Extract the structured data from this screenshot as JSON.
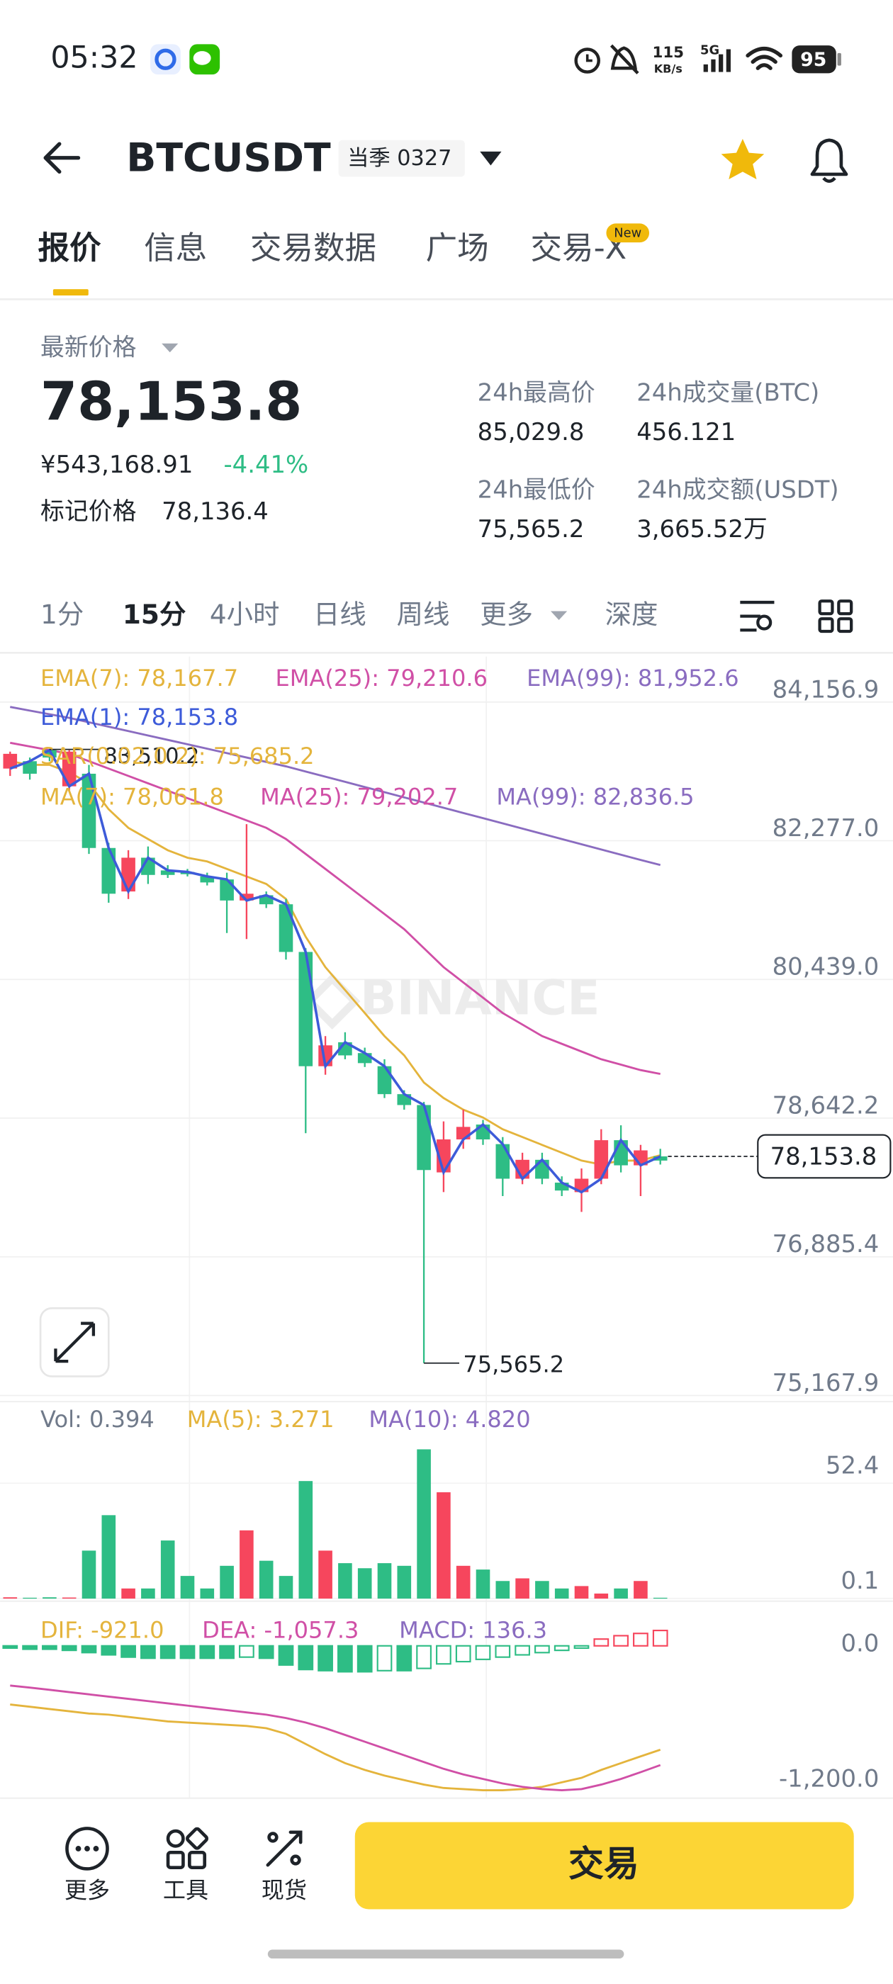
{
  "status_bar": {
    "time": "05:32",
    "speed": "115",
    "speed_unit": "KB/s",
    "network": "5G",
    "battery": "95"
  },
  "header": {
    "symbol": "BTCUSDT",
    "contract": "当季 0327"
  },
  "tabs": {
    "items": [
      "报价",
      "信息",
      "交易数据",
      "广场",
      "交易-X"
    ],
    "badge": "New",
    "active": 0
  },
  "ticker": {
    "label": "最新价格",
    "last_price": "78,153.8",
    "cny": "¥543,168.91",
    "change": "-4.41%",
    "mark_label": "标记价格",
    "mark_price": "78,136.4",
    "stats": [
      {
        "label": "24h最高价",
        "value": "85,029.8"
      },
      {
        "label": "24h成交量(BTC)",
        "value": "456.121"
      },
      {
        "label": "24h最低价",
        "value": "75,565.2"
      },
      {
        "label": "24h成交额(USDT)",
        "value": "3,665.52万"
      }
    ]
  },
  "intervals": {
    "items": [
      "1分",
      "15分",
      "4小时",
      "日线",
      "周线",
      "更多",
      "深度"
    ],
    "active": 1
  },
  "chart_data": {
    "type": "candlestick",
    "log_scale": true,
    "grid": true,
    "ylim": [
      75093,
      84782
    ],
    "yticks": [
      {
        "value": 84156.9,
        "label": "84,156.9"
      },
      {
        "value": 82277.0,
        "label": "82,277.0"
      },
      {
        "value": 80439.0,
        "label": "80,439.0"
      },
      {
        "value": 78642.2,
        "label": "78,642.2"
      },
      {
        "value": 76885.4,
        "label": "76,885.4"
      },
      {
        "value": 75167.9,
        "label": "75,167.9"
      }
    ],
    "up_color": "#2ebd85",
    "down_color": "#f6465d",
    "close_line_color": "#3d5bd9",
    "open": [
      83450,
      83180,
      83400,
      83480,
      82180,
      81570,
      82050,
      81820,
      81820,
      81830,
      81720,
      81480,
      81570,
      81430,
      80800,
      79310,
      79580,
      79450,
      79350,
      78950,
      78810,
      77980,
      78370,
      78530,
      78370,
      77870,
      78110,
      77870,
      77720,
      77870,
      78360,
      78040,
      78230,
      78100
    ],
    "high": [
      83480,
      83400,
      83510.2,
      83500,
      83300,
      82250,
      82150,
      82200,
      81950,
      81900,
      81850,
      81850,
      82500,
      81600,
      81500,
      80850,
      79700,
      79750,
      79550,
      79400,
      79000,
      78850,
      78600,
      78750,
      78620,
      78400,
      78200,
      78200,
      77900,
      78000,
      78500,
      78550,
      78300,
      78250
    ],
    "low": [
      83150,
      83100,
      83350,
      82950,
      82100,
      81450,
      81500,
      81700,
      81780,
      81800,
      81680,
      81050,
      80970,
      81380,
      80700,
      78450,
      79200,
      79400,
      79300,
      78900,
      78750,
      75565.2,
      77700,
      78250,
      78300,
      77650,
      77800,
      77800,
      77650,
      77450,
      77800,
      77950,
      77650,
      78050
    ],
    "close": [
      83250,
      83350,
      83500,
      83010,
      83180,
      82180,
      81600,
      82050,
      81880,
      81860,
      81800,
      81760,
      81480,
      81550,
      81430,
      80800,
      79310,
      79620,
      79480,
      79310,
      78950,
      78810,
      77950,
      78370,
      78560,
      78310,
      77870,
      78110,
      77820,
      77700,
      77870,
      78360,
      78040,
      78153.8
    ],
    "series": [
      {
        "color": "#e4b43c",
        "values": [
          83350,
          83300,
          83300,
          83200,
          83050,
          82700,
          82450,
          82300,
          82150,
          82050,
          82000,
          81900,
          81800,
          81700,
          81500,
          81000,
          80600,
          80300,
          80000,
          79700,
          79450,
          79100,
          78900,
          78750,
          78650,
          78500,
          78400,
          78300,
          78200,
          78100,
          78050,
          78100,
          78100,
          78167.7
        ]
      },
      {
        "color": "#d04fa6",
        "values": [
          83600,
          83550,
          83500,
          83450,
          83350,
          83250,
          83150,
          83050,
          82950,
          82850,
          82750,
          82650,
          82550,
          82450,
          82300,
          82100,
          81900,
          81700,
          81500,
          81300,
          81100,
          80850,
          80600,
          80400,
          80200,
          80000,
          79850,
          79700,
          79600,
          79500,
          79400,
          79330,
          79260,
          79210.6
        ]
      },
      {
        "color": "#8a6cc0",
        "values": [
          84090,
          84040,
          83990,
          83940,
          83880,
          83820,
          83760,
          83700,
          83640,
          83580,
          83520,
          83460,
          83400,
          83340,
          83280,
          83210,
          83140,
          83070,
          83000,
          82930,
          82860,
          82790,
          82720,
          82650,
          82580,
          82510,
          82440,
          82370,
          82300,
          82230,
          82160,
          82090,
          82020,
          81952.6
        ]
      }
    ],
    "legend": [
      {
        "text": "EMA(7): 78,167.7",
        "color": "#e4b43c"
      },
      {
        "text": "EMA(25): 79,210.6",
        "color": "#d04fa6"
      },
      {
        "text": "EMA(99): 81,952.6",
        "color": "#8a6cc0"
      },
      {
        "text": "EMA(1): 78,153.8",
        "color": "#3d5bd9"
      },
      {
        "text": "SAR(0.02,0.2): 75,685.2",
        "color": "#e4b43c"
      },
      {
        "text": "MA(7): 78,061.8",
        "color": "#e4b43c"
      },
      {
        "text": "MA(25): 79,202.7",
        "color": "#d04fa6"
      },
      {
        "text": "MA(99): 82,836.5",
        "color": "#8a6cc0"
      }
    ],
    "high_label": {
      "value": 83510.2,
      "label": "83,510.2"
    },
    "low_label": {
      "value": 75565.2,
      "label": "75,565.2"
    },
    "last_label": {
      "value": 78153.8,
      "label": "78,153.8"
    },
    "watermark": "BINANCE",
    "volume": {
      "ylim": [
        0,
        78
      ],
      "yticks": [
        52.4,
        0.1
      ],
      "values": [
        0.6,
        0.4,
        0.6,
        0.5,
        21.8,
        37.9,
        4.6,
        4.6,
        26.4,
        10.3,
        4.6,
        14.9,
        31.0,
        17.2,
        10.3,
        53.4,
        21.8,
        16.1,
        13.8,
        16.1,
        14.9,
        67.8,
        48.3,
        14.9,
        13.2,
        8.0,
        9.2,
        8.0,
        4.6,
        5.7,
        2.3,
        4.6,
        8.0,
        0.394
      ],
      "legend": [
        {
          "text": "Vol: 0.394",
          "color": "#707a8a"
        },
        {
          "text": "MA(5): 3.271",
          "color": "#e4b43c"
        },
        {
          "text": "MA(10): 4.820",
          "color": "#8a6cc0"
        }
      ]
    },
    "macd": {
      "ylim": [
        -1350,
        150
      ],
      "yticks": [
        {
          "value": 0,
          "label": "0.0"
        },
        {
          "value": -1200,
          "label": "-1,200.0"
        }
      ],
      "histogram": [
        -20,
        -30,
        -30,
        -40,
        -60,
        -80,
        -100,
        -110,
        -110,
        -110,
        -110,
        -110,
        -100,
        -110,
        -170,
        -210,
        -220,
        -230,
        -230,
        -220,
        -220,
        -200,
        -160,
        -140,
        -120,
        -100,
        -80,
        -60,
        -40,
        -20,
        60,
        90,
        110,
        136.3
      ],
      "series": [
        {
          "color": "#e4b43c",
          "values": [
            -520,
            -540,
            -560,
            -580,
            -600,
            -610,
            -630,
            -650,
            -670,
            -680,
            -690,
            -700,
            -710,
            -730,
            -780,
            -870,
            -960,
            -1040,
            -1100,
            -1150,
            -1190,
            -1230,
            -1260,
            -1270,
            -1280,
            -1280,
            -1270,
            -1250,
            -1210,
            -1170,
            -1100,
            -1040,
            -980,
            -921.0
          ]
        },
        {
          "color": "#d04fa6",
          "values": [
            -352,
            -370,
            -390,
            -410,
            -430,
            -450,
            -470,
            -490,
            -510,
            -530,
            -550,
            -570,
            -590,
            -610,
            -640,
            -680,
            -730,
            -790,
            -850,
            -910,
            -970,
            -1030,
            -1090,
            -1140,
            -1180,
            -1220,
            -1250,
            -1270,
            -1280,
            -1270,
            -1230,
            -1180,
            -1120,
            -1057.3
          ]
        }
      ],
      "legend": [
        {
          "text": "DIF: -921.0",
          "color": "#e4b43c"
        },
        {
          "text": "DEA: -1,057.3",
          "color": "#d04fa6"
        },
        {
          "text": "MACD: 136.3",
          "color": "#8a6cc0"
        }
      ]
    }
  },
  "bottom_nav": {
    "items": [
      "更多",
      "工具",
      "现货"
    ],
    "trade_button": "交易"
  }
}
